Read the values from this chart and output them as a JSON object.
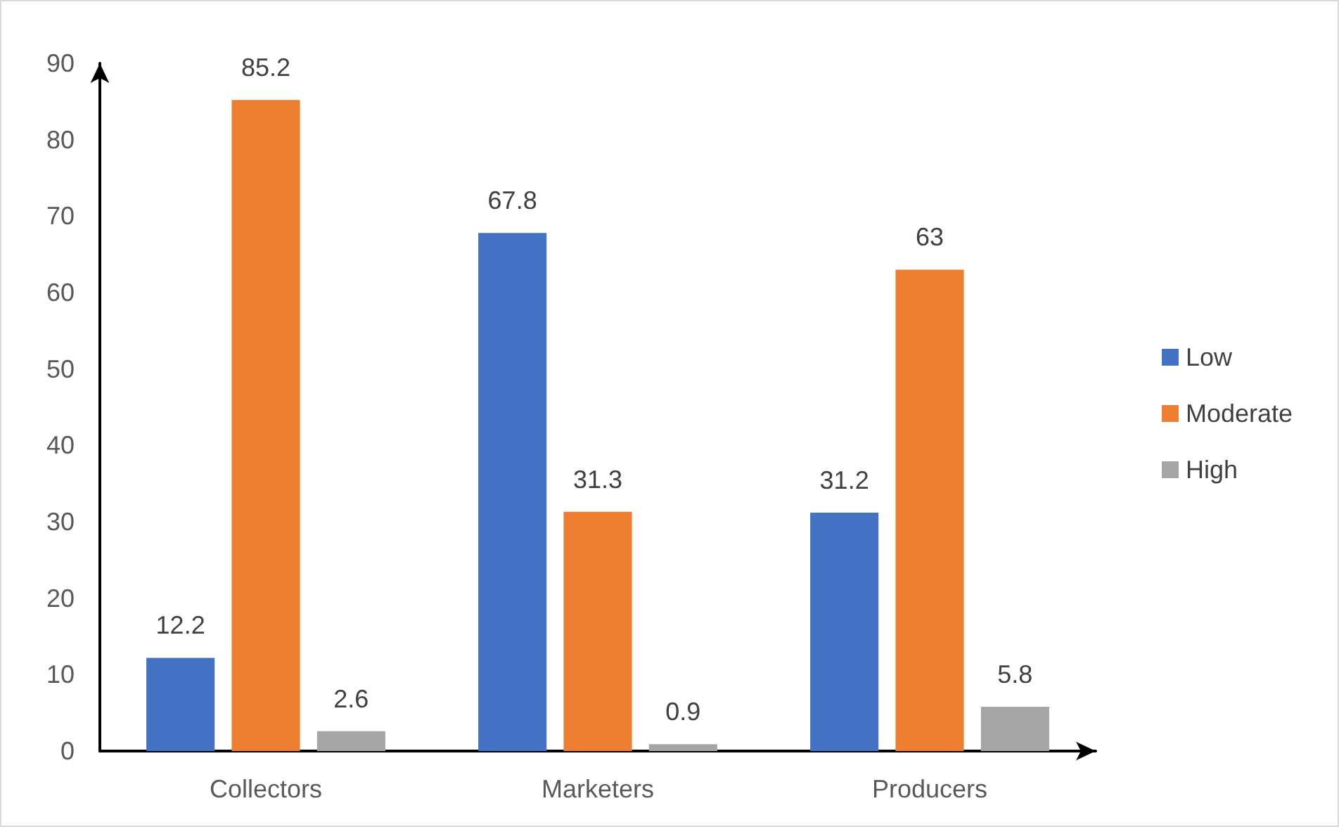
{
  "chart_data": {
    "type": "bar",
    "categories": [
      "Collectors",
      "Marketers",
      "Producers"
    ],
    "series": [
      {
        "name": "Low",
        "color": "#4472c4",
        "values": [
          12.2,
          67.8,
          31.2
        ]
      },
      {
        "name": "Moderate",
        "color": "#ed7d31",
        "values": [
          85.2,
          31.3,
          63
        ]
      },
      {
        "name": "High",
        "color": "#a5a5a5",
        "values": [
          2.6,
          0.9,
          5.8
        ]
      }
    ],
    "ylim": [
      0,
      90
    ],
    "yticks": [
      0,
      10,
      20,
      30,
      40,
      50,
      60,
      70,
      80,
      90
    ],
    "grid": false,
    "legend": "right",
    "data_labels": true
  }
}
